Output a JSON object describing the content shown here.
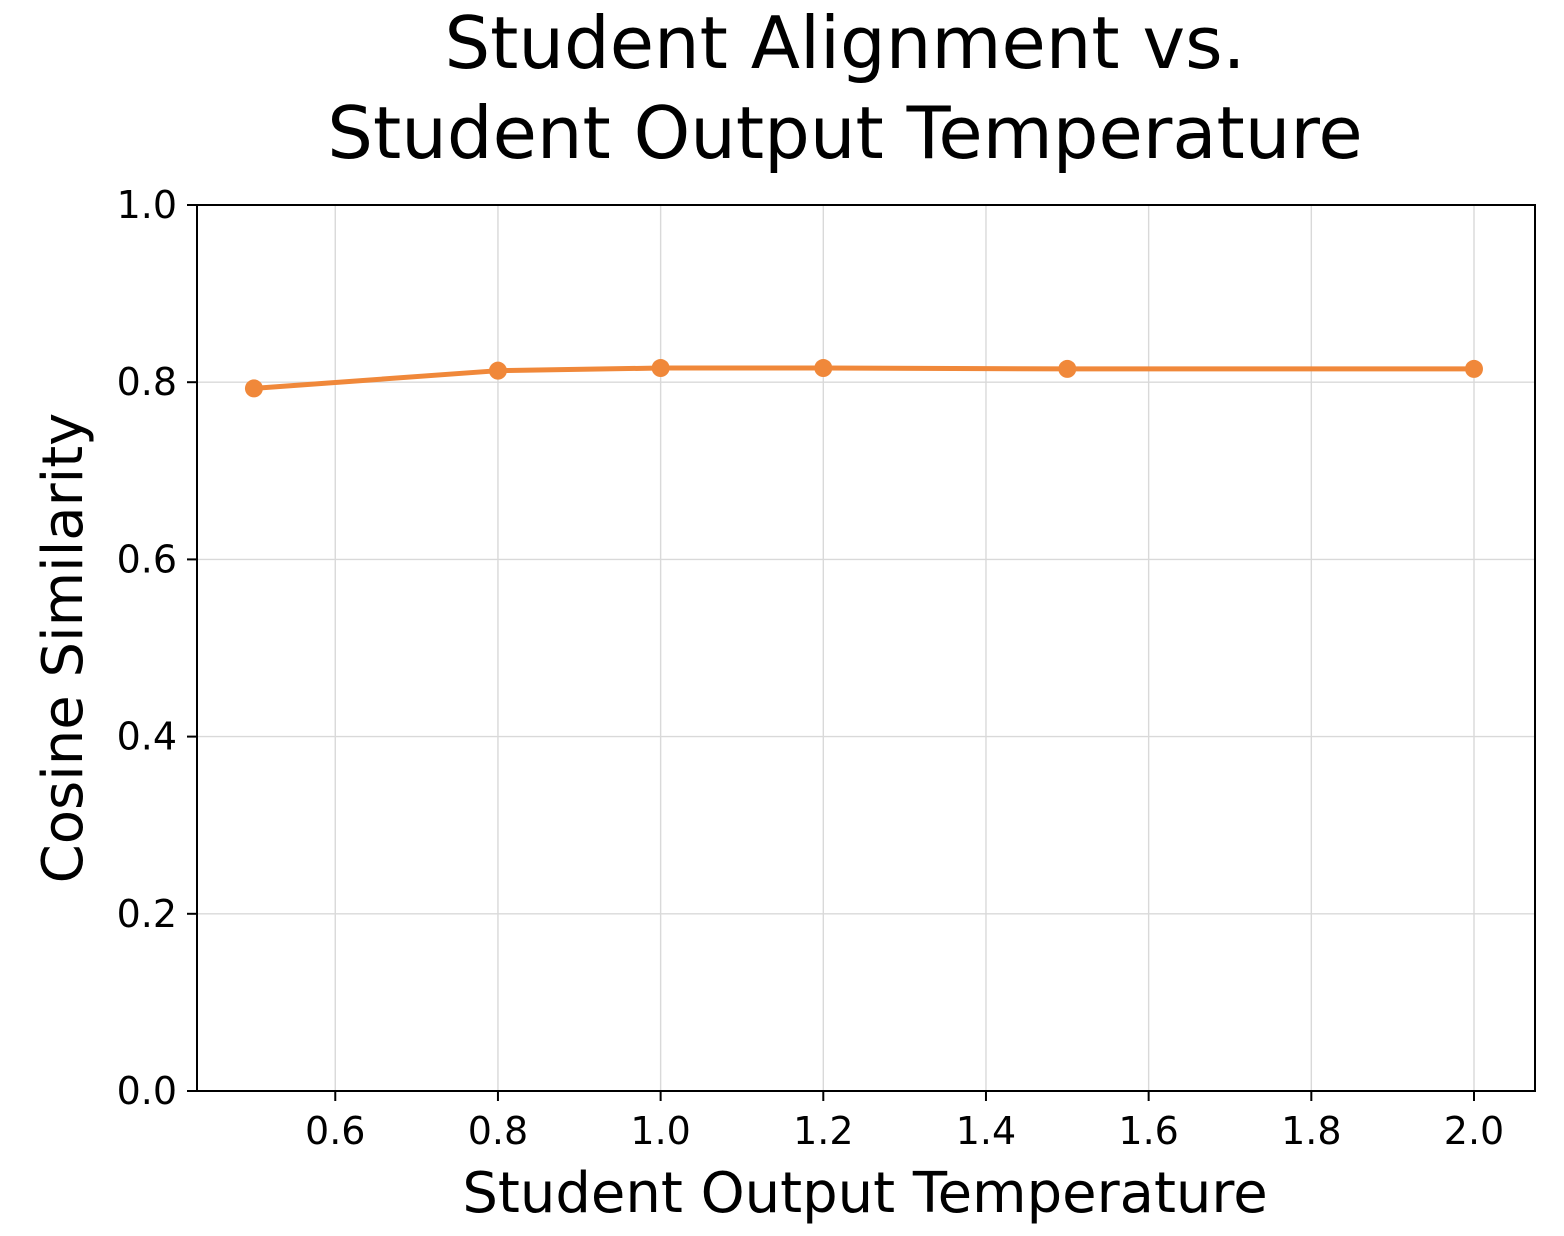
{
  "chart_data": {
    "type": "line",
    "title_lines": [
      "Student Alignment vs.",
      "Student Output Temperature"
    ],
    "xlabel": "Student Output Temperature",
    "ylabel": "Cosine Similarity",
    "xlim": [
      0.43,
      2.075
    ],
    "ylim": [
      0.0,
      1.0
    ],
    "xticks": [
      0.6,
      0.8,
      1.0,
      1.2,
      1.4,
      1.6,
      1.8,
      2.0
    ],
    "xtick_labels": [
      "0.6",
      "0.8",
      "1.0",
      "1.2",
      "1.4",
      "1.6",
      "1.8",
      "2.0"
    ],
    "yticks": [
      0.0,
      0.2,
      0.4,
      0.6,
      0.8,
      1.0
    ],
    "ytick_labels": [
      "0.0",
      "0.2",
      "0.4",
      "0.6",
      "0.8",
      "1.0"
    ],
    "grid": true,
    "series": [
      {
        "color": "#f0883a",
        "x": [
          0.5,
          0.8,
          1.0,
          1.2,
          1.5,
          2.0
        ],
        "y": [
          0.793,
          0.813,
          0.816,
          0.816,
          0.815,
          0.815
        ]
      }
    ]
  }
}
